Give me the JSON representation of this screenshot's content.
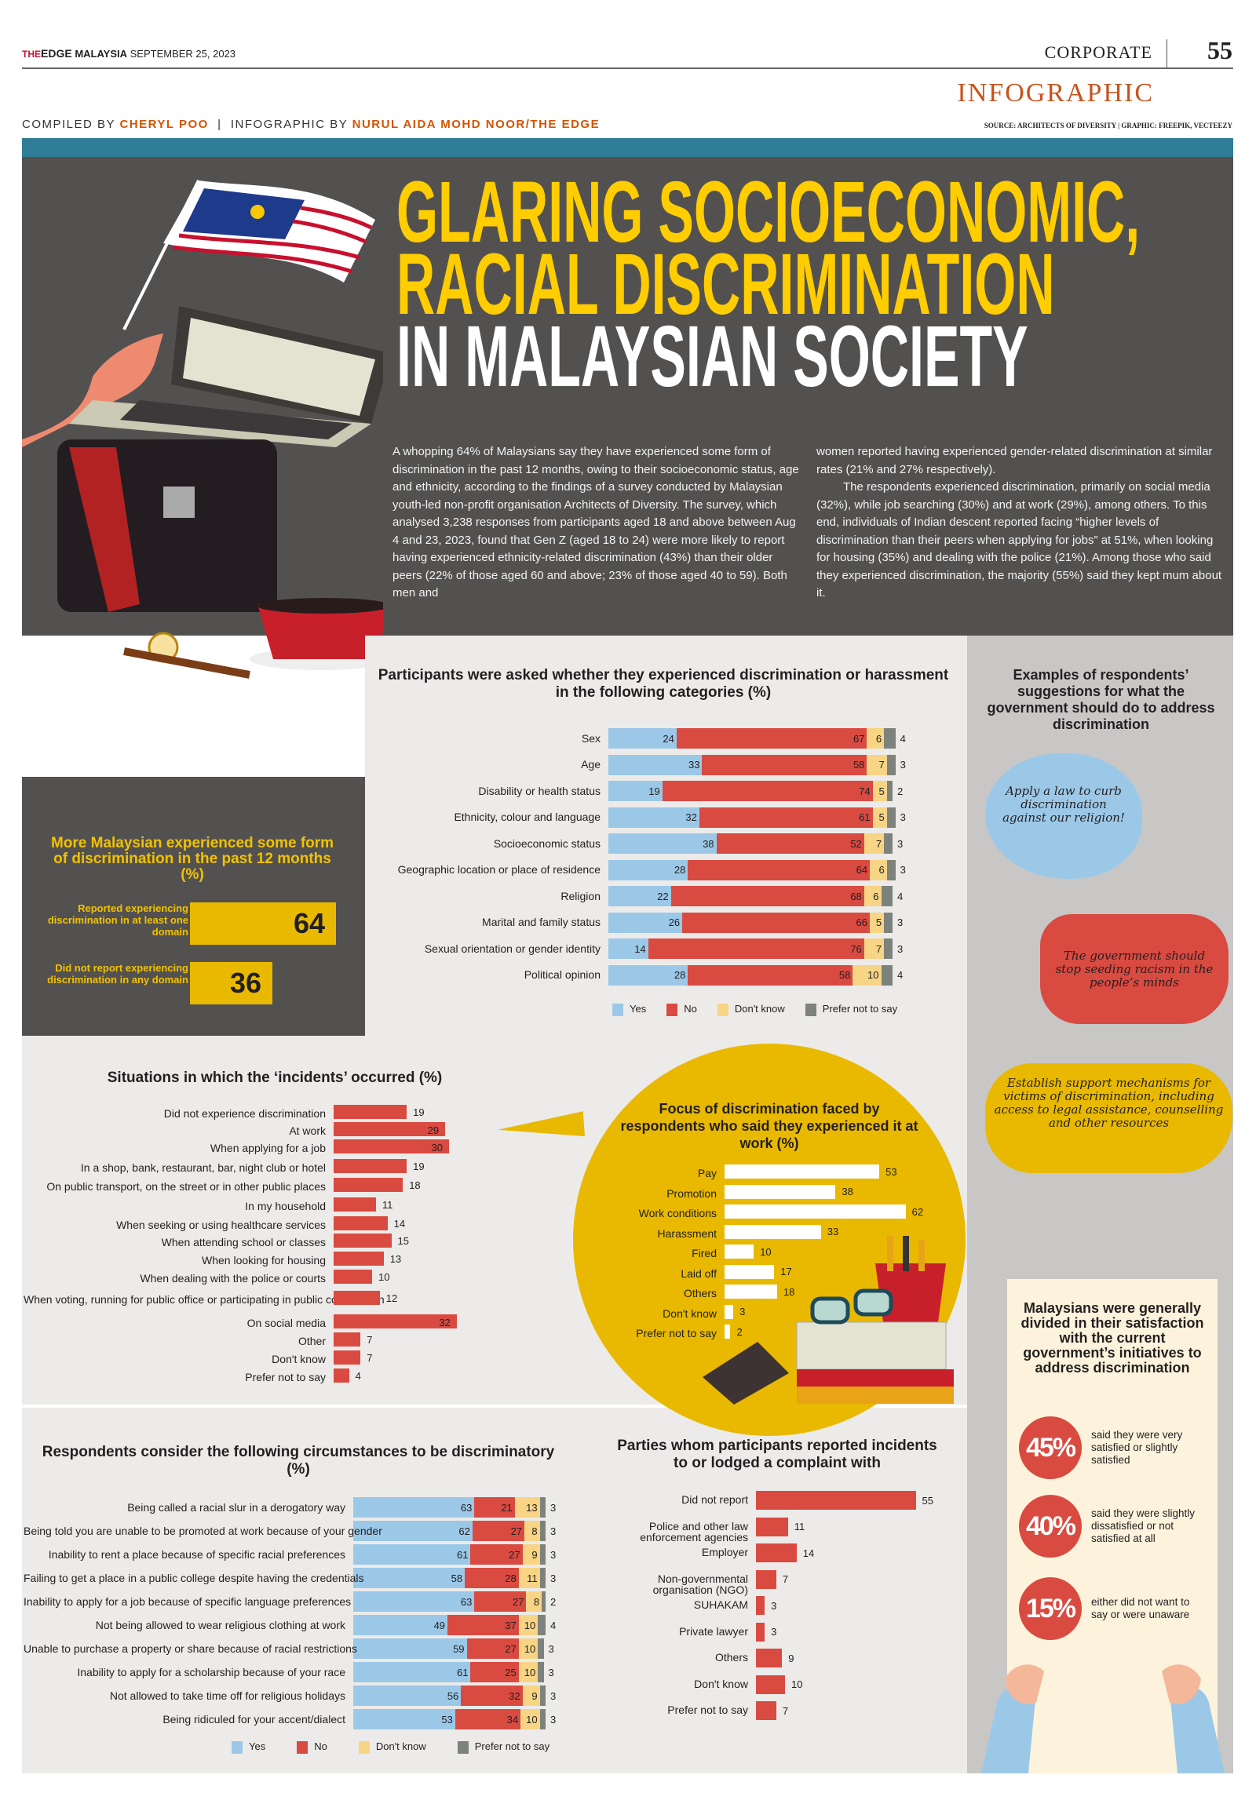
{
  "masthead": {
    "brand_the": "THE",
    "brand_edge": "EDGE",
    "brand_country": "MALAYSIA",
    "date": "SEPTEMBER 25, 2023",
    "section": "CORPORATE",
    "page_number": "55",
    "kicker": "INFOGRAPHIC",
    "compiled_by_label": "COMPILED BY",
    "compiled_by": "CHERYL POO",
    "infographic_by_label": "INFOGRAPHIC BY",
    "infographic_by": "NURUL AIDA MOHD NOOR/THE EDGE",
    "source": "SOURCE: ARCHITECTS OF DIVERSITY | GRAPHIC: FREEPIK, VECTEEZY"
  },
  "headline": {
    "line1": "GLARING SOCIOECONOMIC,",
    "line2": "RACIAL DISCRIMINATION",
    "line3": "IN MALAYSIAN SOCIETY"
  },
  "intro": {
    "col1": "A whopping 64% of Malaysians say they have experienced some form of discrimination in the past 12 months, owing to their socioeconomic status, age and ethnicity, according to the findings of a survey conducted by Malaysian youth-led non-profit organisation Architects of Diversity. The survey, which analysed 3,238 responses from participants aged 18 and above between Aug 4 and 23, 2023, found that Gen Z (aged 18 to 24) were more likely to report having experienced ethnicity-related discrimination (43%) than their older peers (22% of those aged 60 and above; 23% of those aged 40 to 59). Both men and",
    "col2_p1": "women reported having experienced gender-related discrimination at similar rates (21% and 27% respectively).",
    "col2_p2": "The respondents experienced discrimination, primarily on social media (32%), while job searching (30%) and at work (29%), among others. To this end, individuals of Indian descent reported facing “higher levels of discrimination than their peers when applying for jobs” at 51%, when looking for housing (35%) and dealing with the police (21%). Among those who said they experienced discrimination, the majority (55%) said they kept mum about it."
  },
  "experienced_box": {
    "title": "More Malaysian experienced some form of discrimination in the past 12 months (%)",
    "rows": [
      {
        "label": "Reported experiencing discrimination in at least one domain",
        "value": "64"
      },
      {
        "label": "Did not report experiencing discrimination in any domain",
        "value": "36"
      }
    ]
  },
  "legend": {
    "yes": "Yes",
    "no": "No",
    "dont_know": "Don't know",
    "prefer_not": "Prefer not to say"
  },
  "suggestions": {
    "title": "Examples of respondents’ suggestions for what the government should do to address discrimination",
    "quotes": [
      "Apply a law to curb discrimination against our religion!",
      "The government should stop seeding racism in the people’s minds",
      "Establish support mechanisms for victims of discrimination, including access to legal assistance, counselling and other resources"
    ]
  },
  "satisfaction": {
    "title": "Malaysians were generally divided in their satisfaction with the current government’s initiatives to address discrimination",
    "items": [
      {
        "value": "45%",
        "text": "said they were very satisfied or slightly satisfied"
      },
      {
        "value": "40%",
        "text": "said they were slightly dissatisfied or not satisfied at all"
      },
      {
        "value": "15%",
        "text": "either did not want to say or were unaware"
      }
    ]
  },
  "colors": {
    "yes": "#9cc8e8",
    "no": "#d94a41",
    "dont_know": "#f7d585",
    "prefer_not": "#7d827c",
    "accent_yellow": "#e8b900",
    "headline_yellow": "#ffcd00",
    "teal": "#2f7d96",
    "dark_bg": "#535150"
  },
  "chart_data": [
    {
      "type": "bar",
      "stacked": true,
      "orientation": "horizontal",
      "title": "Participants were asked whether they experienced discrimination or harassment in the following categories (%)",
      "categories": [
        "Sex",
        "Age",
        "Disability or health status",
        "Ethnicity, colour and language",
        "Socioeconomic status",
        "Geographic location or place of residence",
        "Religion",
        "Marital and family status",
        "Sexual orientation or gender identity",
        "Political opinion"
      ],
      "series": [
        {
          "name": "Yes",
          "values": [
            24,
            33,
            19,
            32,
            38,
            28,
            22,
            26,
            14,
            28
          ]
        },
        {
          "name": "No",
          "values": [
            67,
            58,
            74,
            61,
            52,
            64,
            68,
            66,
            76,
            58
          ]
        },
        {
          "name": "Don't know",
          "values": [
            6,
            7,
            5,
            5,
            7,
            6,
            6,
            5,
            7,
            10
          ]
        },
        {
          "name": "Prefer not to say",
          "values": [
            4,
            3,
            2,
            3,
            3,
            3,
            4,
            3,
            3,
            4
          ]
        }
      ],
      "legend_position": "bottom"
    },
    {
      "type": "bar",
      "orientation": "horizontal",
      "title": "Situations in which the ‘incidents’ occurred (%)",
      "categories": [
        "Did not experience discrimination",
        "At work",
        "When applying for a job",
        "In a shop, bank, restaurant, bar, night club or hotel",
        "On public transport, on the street or in other public places",
        "In my household",
        "When seeking or using healthcare services",
        "When attending school or classes",
        "When looking for housing",
        "When dealing with the police or courts",
        "When voting, running for public office or participating in public consultation",
        "On social media",
        "Other",
        "Don't know",
        "Prefer not to say"
      ],
      "values": [
        19,
        29,
        30,
        19,
        18,
        11,
        14,
        15,
        13,
        10,
        12,
        32,
        7,
        7,
        4
      ]
    },
    {
      "type": "bar",
      "orientation": "horizontal",
      "title": "Focus of discrimination faced by respondents who said they experienced it at work (%)",
      "categories": [
        "Pay",
        "Promotion",
        "Work conditions",
        "Harassment",
        "Fired",
        "Laid off",
        "Others",
        "Don't know",
        "Prefer not to say"
      ],
      "values": [
        53,
        38,
        62,
        33,
        10,
        17,
        18,
        3,
        2
      ]
    },
    {
      "type": "bar",
      "stacked": true,
      "orientation": "horizontal",
      "title": "Respondents consider the following circumstances to be discriminatory (%)",
      "categories": [
        "Being called a racial slur in a derogatory way",
        "Being told you are unable to be promoted at work because of your gender",
        "Inability to rent a place because of specific racial preferences",
        "Failing to get a place in a public college despite having the credentials",
        "Inability to apply for a  job because of specific language preferences",
        "Not being allowed to wear religious clothing at work",
        "Unable to purchase a property or share because of racial restrictions",
        "Inability to apply for a scholarship because of your race",
        "Not allowed to take time off for religious holidays",
        "Being ridiculed for your accent/dialect"
      ],
      "series": [
        {
          "name": "Yes",
          "values": [
            63,
            62,
            61,
            58,
            63,
            49,
            59,
            61,
            56,
            53
          ]
        },
        {
          "name": "No",
          "values": [
            21,
            27,
            27,
            28,
            27,
            37,
            27,
            25,
            32,
            34
          ]
        },
        {
          "name": "Don't know",
          "values": [
            13,
            8,
            9,
            11,
            8,
            10,
            10,
            10,
            9,
            10
          ]
        },
        {
          "name": "Prefer not to say",
          "values": [
            3,
            3,
            3,
            3,
            2,
            4,
            3,
            3,
            3,
            3
          ]
        }
      ],
      "legend_position": "bottom"
    },
    {
      "type": "bar",
      "orientation": "horizontal",
      "title": "Parties whom participants reported incidents to or lodged a complaint with",
      "categories": [
        "Did not report",
        "Police and other  law enforcement agencies",
        "Employer",
        "Non-governmental organisation (NGO)",
        "SUHAKAM",
        "Private lawyer",
        "Others",
        "Don't know",
        "Prefer not to say"
      ],
      "values": [
        55,
        11,
        14,
        7,
        3,
        3,
        9,
        10,
        7
      ]
    },
    {
      "type": "bar",
      "title": "More Malaysian experienced some form of discrimination in the past 12 months (%)",
      "categories": [
        "Reported experiencing discrimination in at least one domain",
        "Did not report experiencing discrimination in any domain"
      ],
      "values": [
        64,
        36
      ]
    }
  ]
}
